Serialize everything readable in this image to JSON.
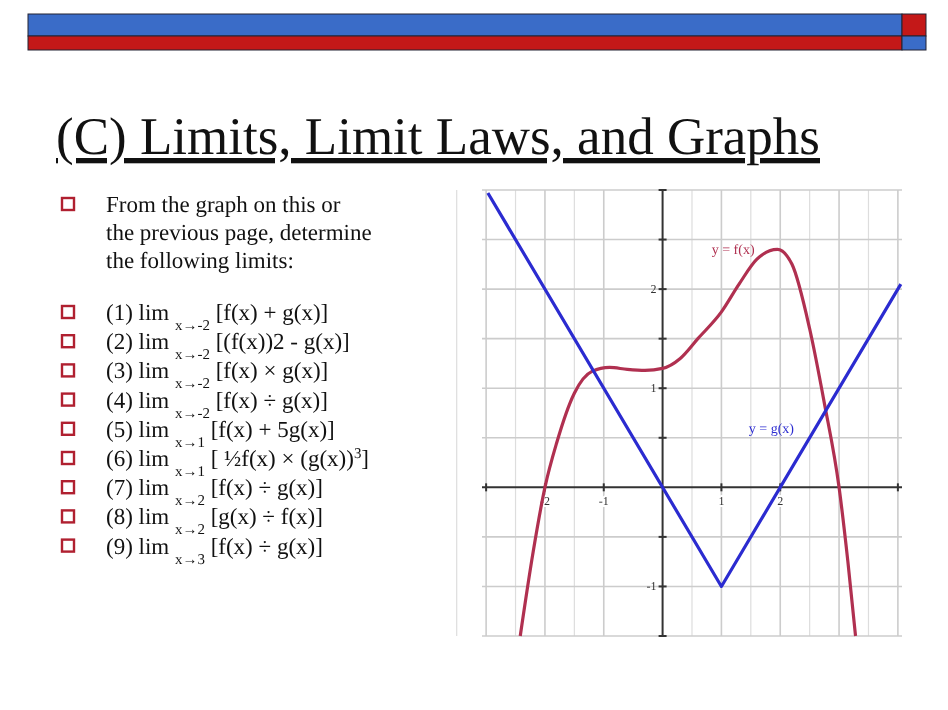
{
  "chart_data": {
    "type": "line",
    "title": "(C) Limits, Limit Laws, and Graphs",
    "annotations": [
      "From the graph on this or the previous page, determine the following limits:",
      "(1) lim $_{x→-2}$ [f(x) + g(x)]",
      "(2) lim $_{x→-2}$ [(f(x))2 - g(x)]",
      "(3) lim $_{x→-2}$ [f(x) × g(x)]",
      "(4) lim $_{x→-2}$ [f(x) ÷ g(x)]",
      "(5) lim $_{x→1}$ [f(x) + 5g(x)]",
      "(6) lim $_{x→1}$ [ ½f(x) × (g(x))$^{3}$]",
      "(7) lim $_{x→2}$ [f(x) ÷ g(x)]",
      "(8) lim $_{x→2}$ [g(x) ÷ f(x)]",
      "(9) lim $_{x→3}$ [f(x) ÷ g(x)]"
    ],
    "series": [
      {
        "name": "y = f(x)",
        "color": "#b03050",
        "x": [
          -2.42,
          -2.2,
          -2,
          -1.8,
          -1.5,
          -1.2,
          -0.9,
          -0.6,
          -0.3,
          0,
          0.3,
          0.6,
          1,
          1.3,
          1.6,
          1.95,
          2.2,
          2.5,
          2.75,
          3,
          3.15,
          3.28
        ],
        "values": [
          -1.5,
          -0.65,
          0,
          0.45,
          0.95,
          1.17,
          1.21,
          1.19,
          1.18,
          1.2,
          1.3,
          1.5,
          1.77,
          2.05,
          2.3,
          2.4,
          2.25,
          1.6,
          0.85,
          0,
          -0.75,
          -1.5
        ]
      },
      {
        "name": "y = g(x)",
        "color": "#2b2bd0",
        "x": [
          -2.97,
          1,
          4.05
        ],
        "values": [
          2.97,
          -1,
          2.05
        ]
      }
    ],
    "xlim": [
      -3.07,
      4.07
    ],
    "ylim": [
      -1.5,
      3
    ],
    "xticks": [
      {
        "value": -3,
        "label": null
      },
      -2,
      -1,
      1,
      2,
      {
        "value": 3,
        "label": null
      },
      {
        "value": 4,
        "label": null
      }
    ],
    "yticks": [
      {
        "value": -1.5,
        "label": null
      },
      -1,
      {
        "value": -0.5,
        "label": null
      },
      {
        "value": 0.5,
        "label": null
      },
      1,
      {
        "value": 1.5,
        "label": null
      },
      2,
      {
        "value": 2.5,
        "label": null
      },
      {
        "value": 3,
        "label": null
      }
    ],
    "grid": true,
    "marker": "none",
    "line_style": "solid"
  }
}
